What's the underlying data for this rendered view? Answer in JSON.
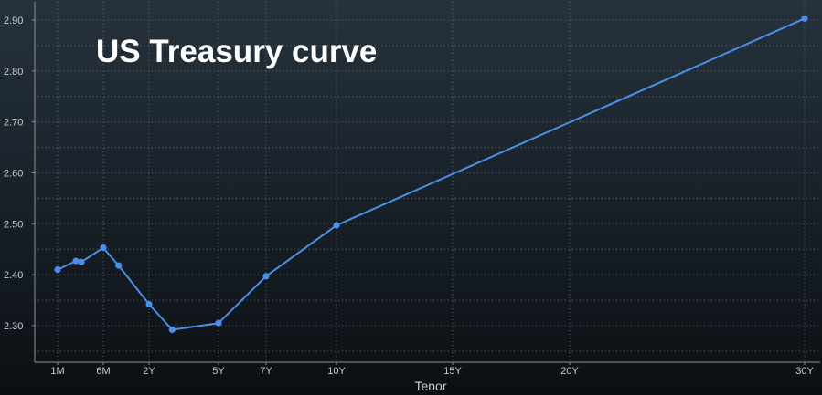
{
  "chart_data": {
    "type": "line",
    "title": "US Treasury curve",
    "xlabel": "Tenor",
    "ylabel": "",
    "ylim": [
      2.225,
      2.925
    ],
    "y_ticks": [
      {
        "value": 2.3,
        "label": "2.30"
      },
      {
        "value": 2.4,
        "label": "2.40"
      },
      {
        "value": 2.5,
        "label": "2.50"
      },
      {
        "value": 2.6,
        "label": "2.60"
      },
      {
        "value": 2.7,
        "label": "2.70"
      },
      {
        "value": 2.8,
        "label": "2.80"
      },
      {
        "value": 2.9,
        "label": "2.90"
      }
    ],
    "x_ticks": [
      {
        "years": 0.0833,
        "label": "1M"
      },
      {
        "years": 0.5,
        "label": "6M"
      },
      {
        "years": 2,
        "label": "2Y"
      },
      {
        "years": 5,
        "label": "5Y"
      },
      {
        "years": 7,
        "label": "7Y"
      },
      {
        "years": 10,
        "label": "10Y"
      },
      {
        "years": 15,
        "label": "15Y"
      },
      {
        "years": 20,
        "label": "20Y"
      },
      {
        "years": 30,
        "label": "30Y"
      }
    ],
    "grid": true,
    "legend": "none",
    "series": [
      {
        "color": "#4a8fe8",
        "points": [
          {
            "x": 0.0833,
            "y": 2.41
          },
          {
            "x": 0.25,
            "y": 2.427
          },
          {
            "x": 0.3,
            "y": 2.425
          },
          {
            "x": 0.5,
            "y": 2.453
          },
          {
            "x": 1,
            "y": 2.418
          },
          {
            "x": 2,
            "y": 2.342
          },
          {
            "x": 3,
            "y": 2.292
          },
          {
            "x": 5,
            "y": 2.305
          },
          {
            "x": 7,
            "y": 2.397
          },
          {
            "x": 10,
            "y": 2.497
          },
          {
            "x": 30,
            "y": 2.903
          }
        ]
      }
    ]
  }
}
